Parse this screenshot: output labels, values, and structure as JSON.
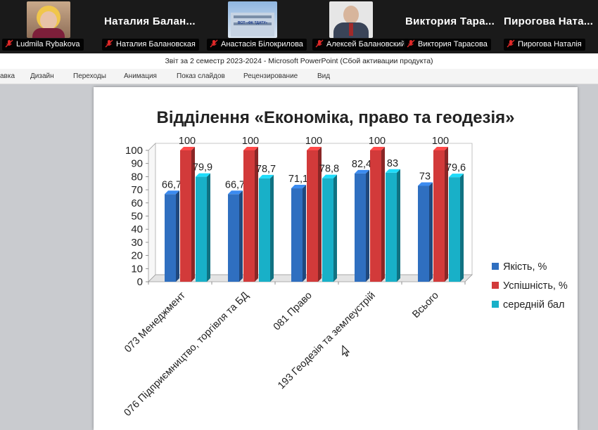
{
  "participants": [
    {
      "big_name": "",
      "label": "Ludmila Rybakova",
      "has_video": true,
      "avatar": "woman-portrait"
    },
    {
      "big_name": "Наталия Балан...",
      "label": "Наталия Балановская",
      "has_video": false
    },
    {
      "big_name": "",
      "label": "Анастасія Білокрилова",
      "has_video": true,
      "avatar": "building-photo",
      "video_text": "ВСП «ФК ТДАТУ»"
    },
    {
      "big_name": "",
      "label": "Алексей Балановский",
      "has_video": true,
      "avatar": "man-portrait"
    },
    {
      "big_name": "Виктория Тара...",
      "label": "Виктория Тарасова",
      "has_video": false
    },
    {
      "big_name": "Пирогова Ната...",
      "label": "Пирогова Наталія",
      "has_video": false
    }
  ],
  "window": {
    "title": "Звіт за 2 семестр 2023-2024  -  Microsoft PowerPoint (Сбой активации продукта)"
  },
  "ribbon": {
    "tabs": [
      "авка",
      "Дизайн",
      "Переходы",
      "Анимация",
      "Показ слайдов",
      "Рецензирование",
      "Вид"
    ]
  },
  "slide": {
    "title": "Відділення «Економіка, право та геодезія»"
  },
  "chart_data": {
    "type": "bar",
    "categories": [
      "073 Менеджмент",
      "076 Підприємництво, торгівля та БД",
      "081 Право",
      "193 Геодезія та землеустрій",
      "Всього"
    ],
    "series": [
      {
        "name": "Якість, %",
        "values": [
          66.7,
          66.7,
          71.1,
          82.4,
          73
        ],
        "labels": [
          "66,7",
          "66,7",
          "71,1",
          "82,4",
          "73"
        ],
        "color": "#2f6fc0"
      },
      {
        "name": "Успішність, %",
        "values": [
          100,
          100,
          100,
          100,
          100
        ],
        "labels": [
          "100",
          "100",
          "100",
          "100",
          "100"
        ],
        "color": "#d23a3a"
      },
      {
        "name": "середній бал",
        "values": [
          79.9,
          78.7,
          78.8,
          83,
          79.6
        ],
        "labels": [
          "79,9",
          "78,7",
          "78,8",
          "83",
          "79,6"
        ],
        "color": "#18b0c8"
      }
    ],
    "y_ticks": [
      "0",
      "10",
      "20",
      "30",
      "40",
      "50",
      "60",
      "70",
      "80",
      "90",
      "100"
    ],
    "ylim": [
      0,
      100
    ],
    "grid": false,
    "legend": "right",
    "three_d": true
  },
  "colors": {
    "zoom_bg": "#1a1a1a",
    "workspace": "#c9cbcf",
    "muted_mic": "#e02828"
  }
}
